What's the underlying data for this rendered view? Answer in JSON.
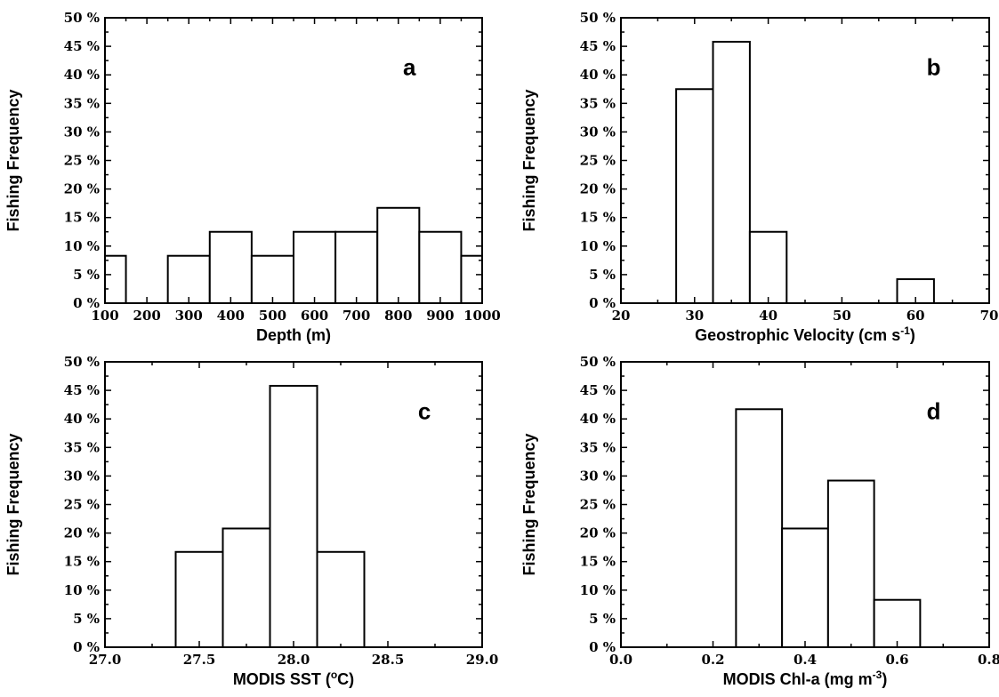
{
  "chart_data": [
    {
      "panel": "a",
      "type": "bar",
      "xlabel": "Depth (m)",
      "ylabel": "Fishing Frequency",
      "xlim": [
        100,
        1000
      ],
      "ylim": [
        0,
        50
      ],
      "x_ticks": [
        "100",
        "200",
        "300",
        "400",
        "500",
        "600",
        "700",
        "800",
        "900",
        "1000"
      ],
      "y_ticks": [
        "0 %",
        "5 %",
        "10 %",
        "15 %",
        "20 %",
        "25 %",
        "30 %",
        "35 %",
        "40 %",
        "45 %",
        "50 %"
      ],
      "bins": [
        {
          "x0": 100,
          "x1": 150,
          "value": 8.3
        },
        {
          "x0": 250,
          "x1": 350,
          "value": 8.3
        },
        {
          "x0": 350,
          "x1": 450,
          "value": 12.5
        },
        {
          "x0": 450,
          "x1": 550,
          "value": 8.3
        },
        {
          "x0": 550,
          "x1": 650,
          "value": 12.5
        },
        {
          "x0": 650,
          "x1": 750,
          "value": 12.5
        },
        {
          "x0": 750,
          "x1": 850,
          "value": 16.7
        },
        {
          "x0": 850,
          "x1": 950,
          "value": 12.5
        },
        {
          "x0": 950,
          "x1": 1000,
          "value": 8.3
        }
      ]
    },
    {
      "panel": "b",
      "type": "bar",
      "xlabel": "Geostrophic Velocity (cm s",
      "xlabel_sup": "-1",
      "xlabel_end": ")",
      "ylabel": "Fishing Frequency",
      "xlim": [
        20,
        70
      ],
      "ylim": [
        0,
        50
      ],
      "x_ticks": [
        "20",
        "30",
        "40",
        "50",
        "60",
        "70"
      ],
      "y_ticks": [
        "0 %",
        "5 %",
        "10 %",
        "15 %",
        "20 %",
        "25 %",
        "30 %",
        "35 %",
        "40 %",
        "45 %",
        "50 %"
      ],
      "bins": [
        {
          "x0": 27.5,
          "x1": 32.5,
          "value": 37.5
        },
        {
          "x0": 32.5,
          "x1": 37.5,
          "value": 45.8
        },
        {
          "x0": 37.5,
          "x1": 42.5,
          "value": 12.5
        },
        {
          "x0": 57.5,
          "x1": 62.5,
          "value": 4.2
        }
      ]
    },
    {
      "panel": "c",
      "type": "bar",
      "xlabel": "MODIS SST (",
      "xlabel_sup": "o",
      "xlabel_end": "C)",
      "ylabel": "Fishing Frequency",
      "xlim": [
        27.0,
        29.0
      ],
      "ylim": [
        0,
        50
      ],
      "x_ticks": [
        "27.0",
        "27.5",
        "28.0",
        "28.5",
        "29.0"
      ],
      "y_ticks": [
        "0 %",
        "5 %",
        "10 %",
        "15 %",
        "20 %",
        "25 %",
        "30 %",
        "35 %",
        "40 %",
        "45 %",
        "50 %"
      ],
      "bins": [
        {
          "x0": 27.375,
          "x1": 27.625,
          "value": 16.7
        },
        {
          "x0": 27.625,
          "x1": 27.875,
          "value": 20.8
        },
        {
          "x0": 27.875,
          "x1": 28.125,
          "value": 45.8
        },
        {
          "x0": 28.125,
          "x1": 28.375,
          "value": 16.7
        }
      ]
    },
    {
      "panel": "d",
      "type": "bar",
      "xlabel": "MODIS Chl-a (mg m",
      "xlabel_sup": "-3",
      "xlabel_end": ")",
      "ylabel": "Fishing Frequency",
      "xlim": [
        0.0,
        0.8
      ],
      "ylim": [
        0,
        50
      ],
      "x_ticks": [
        "0.0",
        "0.2",
        "0.4",
        "0.6",
        "0.8"
      ],
      "y_ticks": [
        "0 %",
        "5 %",
        "10 %",
        "15 %",
        "20 %",
        "25 %",
        "30 %",
        "35 %",
        "40 %",
        "45 %",
        "50 %"
      ],
      "bins": [
        {
          "x0": 0.25,
          "x1": 0.35,
          "value": 41.7
        },
        {
          "x0": 0.35,
          "x1": 0.45,
          "value": 20.8
        },
        {
          "x0": 0.45,
          "x1": 0.55,
          "value": 29.2
        },
        {
          "x0": 0.55,
          "x1": 0.65,
          "value": 8.3
        }
      ]
    }
  ]
}
